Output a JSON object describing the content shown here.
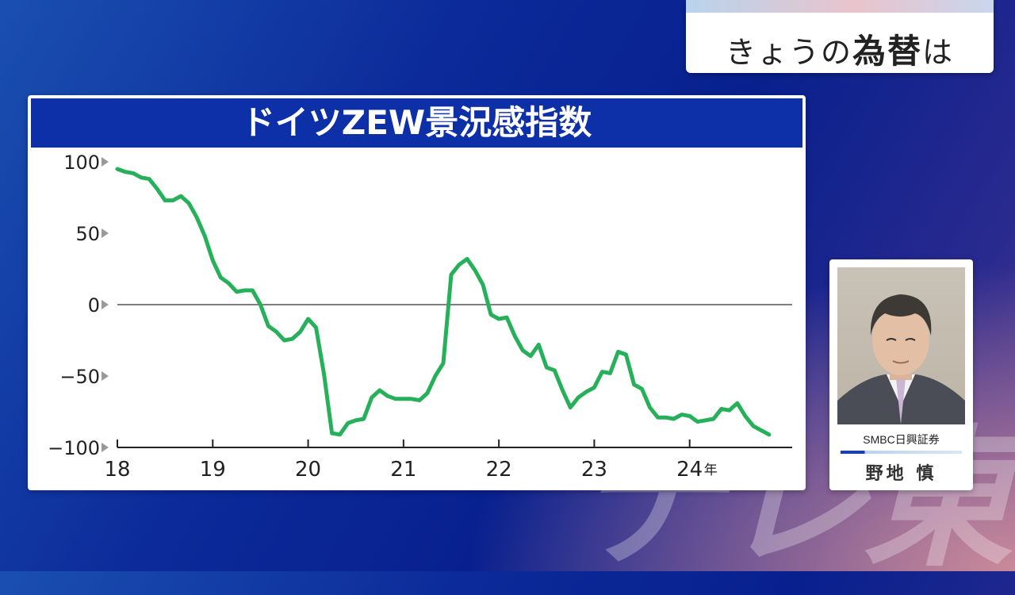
{
  "watermark": "テレ東",
  "topic": {
    "prefix": "きょうの",
    "bold": "為替",
    "suffix": "は"
  },
  "presenter": {
    "company": "SMBC日興証券",
    "name": "野地 慎"
  },
  "chart_data": {
    "type": "line",
    "title": "ドイツZEW景況感指数",
    "x_ticks": [
      {
        "value": 2018,
        "label": "18"
      },
      {
        "value": 2019,
        "label": "19"
      },
      {
        "value": 2020,
        "label": "20"
      },
      {
        "value": 2021,
        "label": "21"
      },
      {
        "value": 2022,
        "label": "22"
      },
      {
        "value": 2023,
        "label": "23"
      },
      {
        "value": 2024,
        "label": "24",
        "suffix": "年"
      }
    ],
    "y_ticks": [
      100,
      50,
      0,
      -50,
      -100
    ],
    "y_tick_labels": [
      "100",
      "50",
      "0",
      "−50",
      "−100"
    ],
    "xlim": [
      2018.0,
      2025.1
    ],
    "ylim": [
      -100,
      100
    ],
    "zero_line": true,
    "line_color": "#27b05a",
    "series": [
      {
        "x": [
          2018.0,
          2018.083,
          2018.167,
          2018.25,
          2018.333,
          2018.417,
          2018.5,
          2018.583,
          2018.667,
          2018.75,
          2018.833,
          2018.917,
          2019.0,
          2019.083,
          2019.167,
          2019.25,
          2019.333,
          2019.417,
          2019.5,
          2019.583,
          2019.667,
          2019.75,
          2019.833,
          2019.917,
          2020.0,
          2020.083,
          2020.167,
          2020.25,
          2020.333,
          2020.417,
          2020.5,
          2020.583,
          2020.667,
          2020.75,
          2020.833,
          2020.917,
          2021.0,
          2021.083,
          2021.167,
          2021.25,
          2021.333,
          2021.417,
          2021.5,
          2021.583,
          2021.667,
          2021.75,
          2021.833,
          2021.917,
          2022.0,
          2022.083,
          2022.167,
          2022.25,
          2022.333,
          2022.417,
          2022.5,
          2022.583,
          2022.667,
          2022.75,
          2022.833,
          2022.917,
          2023.0,
          2023.083,
          2023.167,
          2023.25,
          2023.333,
          2023.417,
          2023.5,
          2023.583,
          2023.667,
          2023.75,
          2023.833,
          2023.917,
          2024.0,
          2024.083,
          2024.167,
          2024.25,
          2024.333,
          2024.417,
          2024.5,
          2024.583,
          2024.667,
          2024.75,
          2024.833
        ],
        "y": [
          95,
          93,
          92,
          89,
          88,
          81,
          73,
          73,
          76,
          71,
          61,
          48,
          31,
          19,
          15,
          9,
          10,
          10,
          0,
          -15,
          -19,
          -25,
          -24,
          -19,
          -10,
          -16,
          -49,
          -90,
          -91,
          -83,
          -81,
          -80,
          -65,
          -60,
          -64,
          -66,
          -66,
          -66,
          -67,
          -62,
          -50,
          -41,
          21,
          28,
          32,
          24,
          14,
          -7,
          -10,
          -9,
          -22,
          -32,
          -36,
          -28,
          -44,
          -46,
          -60,
          -72,
          -65,
          -61,
          -58,
          -47,
          -48,
          -33,
          -35,
          -56,
          -59,
          -72,
          -79,
          -79,
          -80,
          -77,
          -78,
          -82,
          -81,
          -80,
          -73,
          -74,
          -69,
          -78,
          -85,
          -88,
          -91
        ]
      }
    ]
  }
}
